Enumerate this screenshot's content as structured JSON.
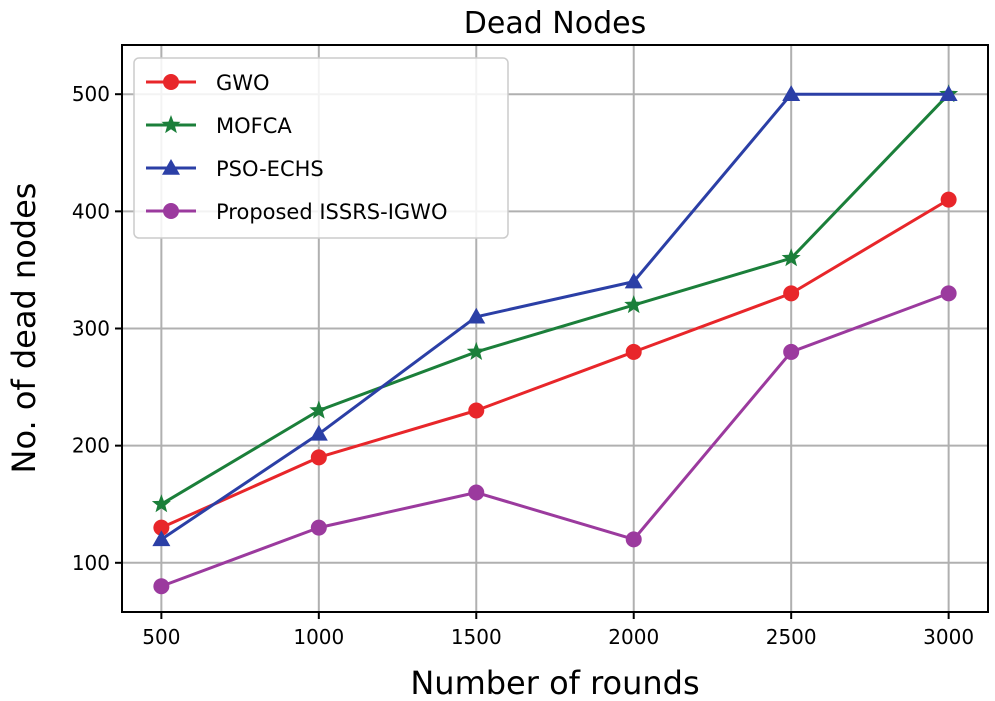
{
  "chart_data": {
    "type": "line",
    "title": "Dead Nodes",
    "xlabel": "Number of rounds",
    "ylabel": "No. of dead nodes",
    "x": [
      500,
      1000,
      1500,
      2000,
      2500,
      3000
    ],
    "x_tick_labels": [
      "500",
      "1000",
      "1500",
      "2000",
      "2500",
      "3000"
    ],
    "y_ticks": [
      100,
      200,
      300,
      400,
      500
    ],
    "y_tick_labels": [
      "100",
      "200",
      "300",
      "400",
      "500"
    ],
    "xlim": [
      375,
      3125
    ],
    "ylim": [
      58,
      542
    ],
    "grid": true,
    "legend_position": "top-left",
    "series": [
      {
        "name": "GWO",
        "color": "#e8262a",
        "marker": "circle",
        "values": [
          130,
          190,
          230,
          280,
          330,
          410
        ]
      },
      {
        "name": "MOFCA",
        "color": "#1b7f3a",
        "marker": "star",
        "values": [
          150,
          230,
          280,
          320,
          360,
          500
        ]
      },
      {
        "name": "PSO-ECHS",
        "color": "#2b3fa6",
        "marker": "triangle",
        "values": [
          120,
          210,
          310,
          340,
          500,
          500
        ]
      },
      {
        "name": "Proposed ISSRS-IGWO",
        "color": "#9b3a9e",
        "marker": "circle",
        "values": [
          80,
          130,
          160,
          120,
          280,
          330
        ]
      }
    ]
  }
}
